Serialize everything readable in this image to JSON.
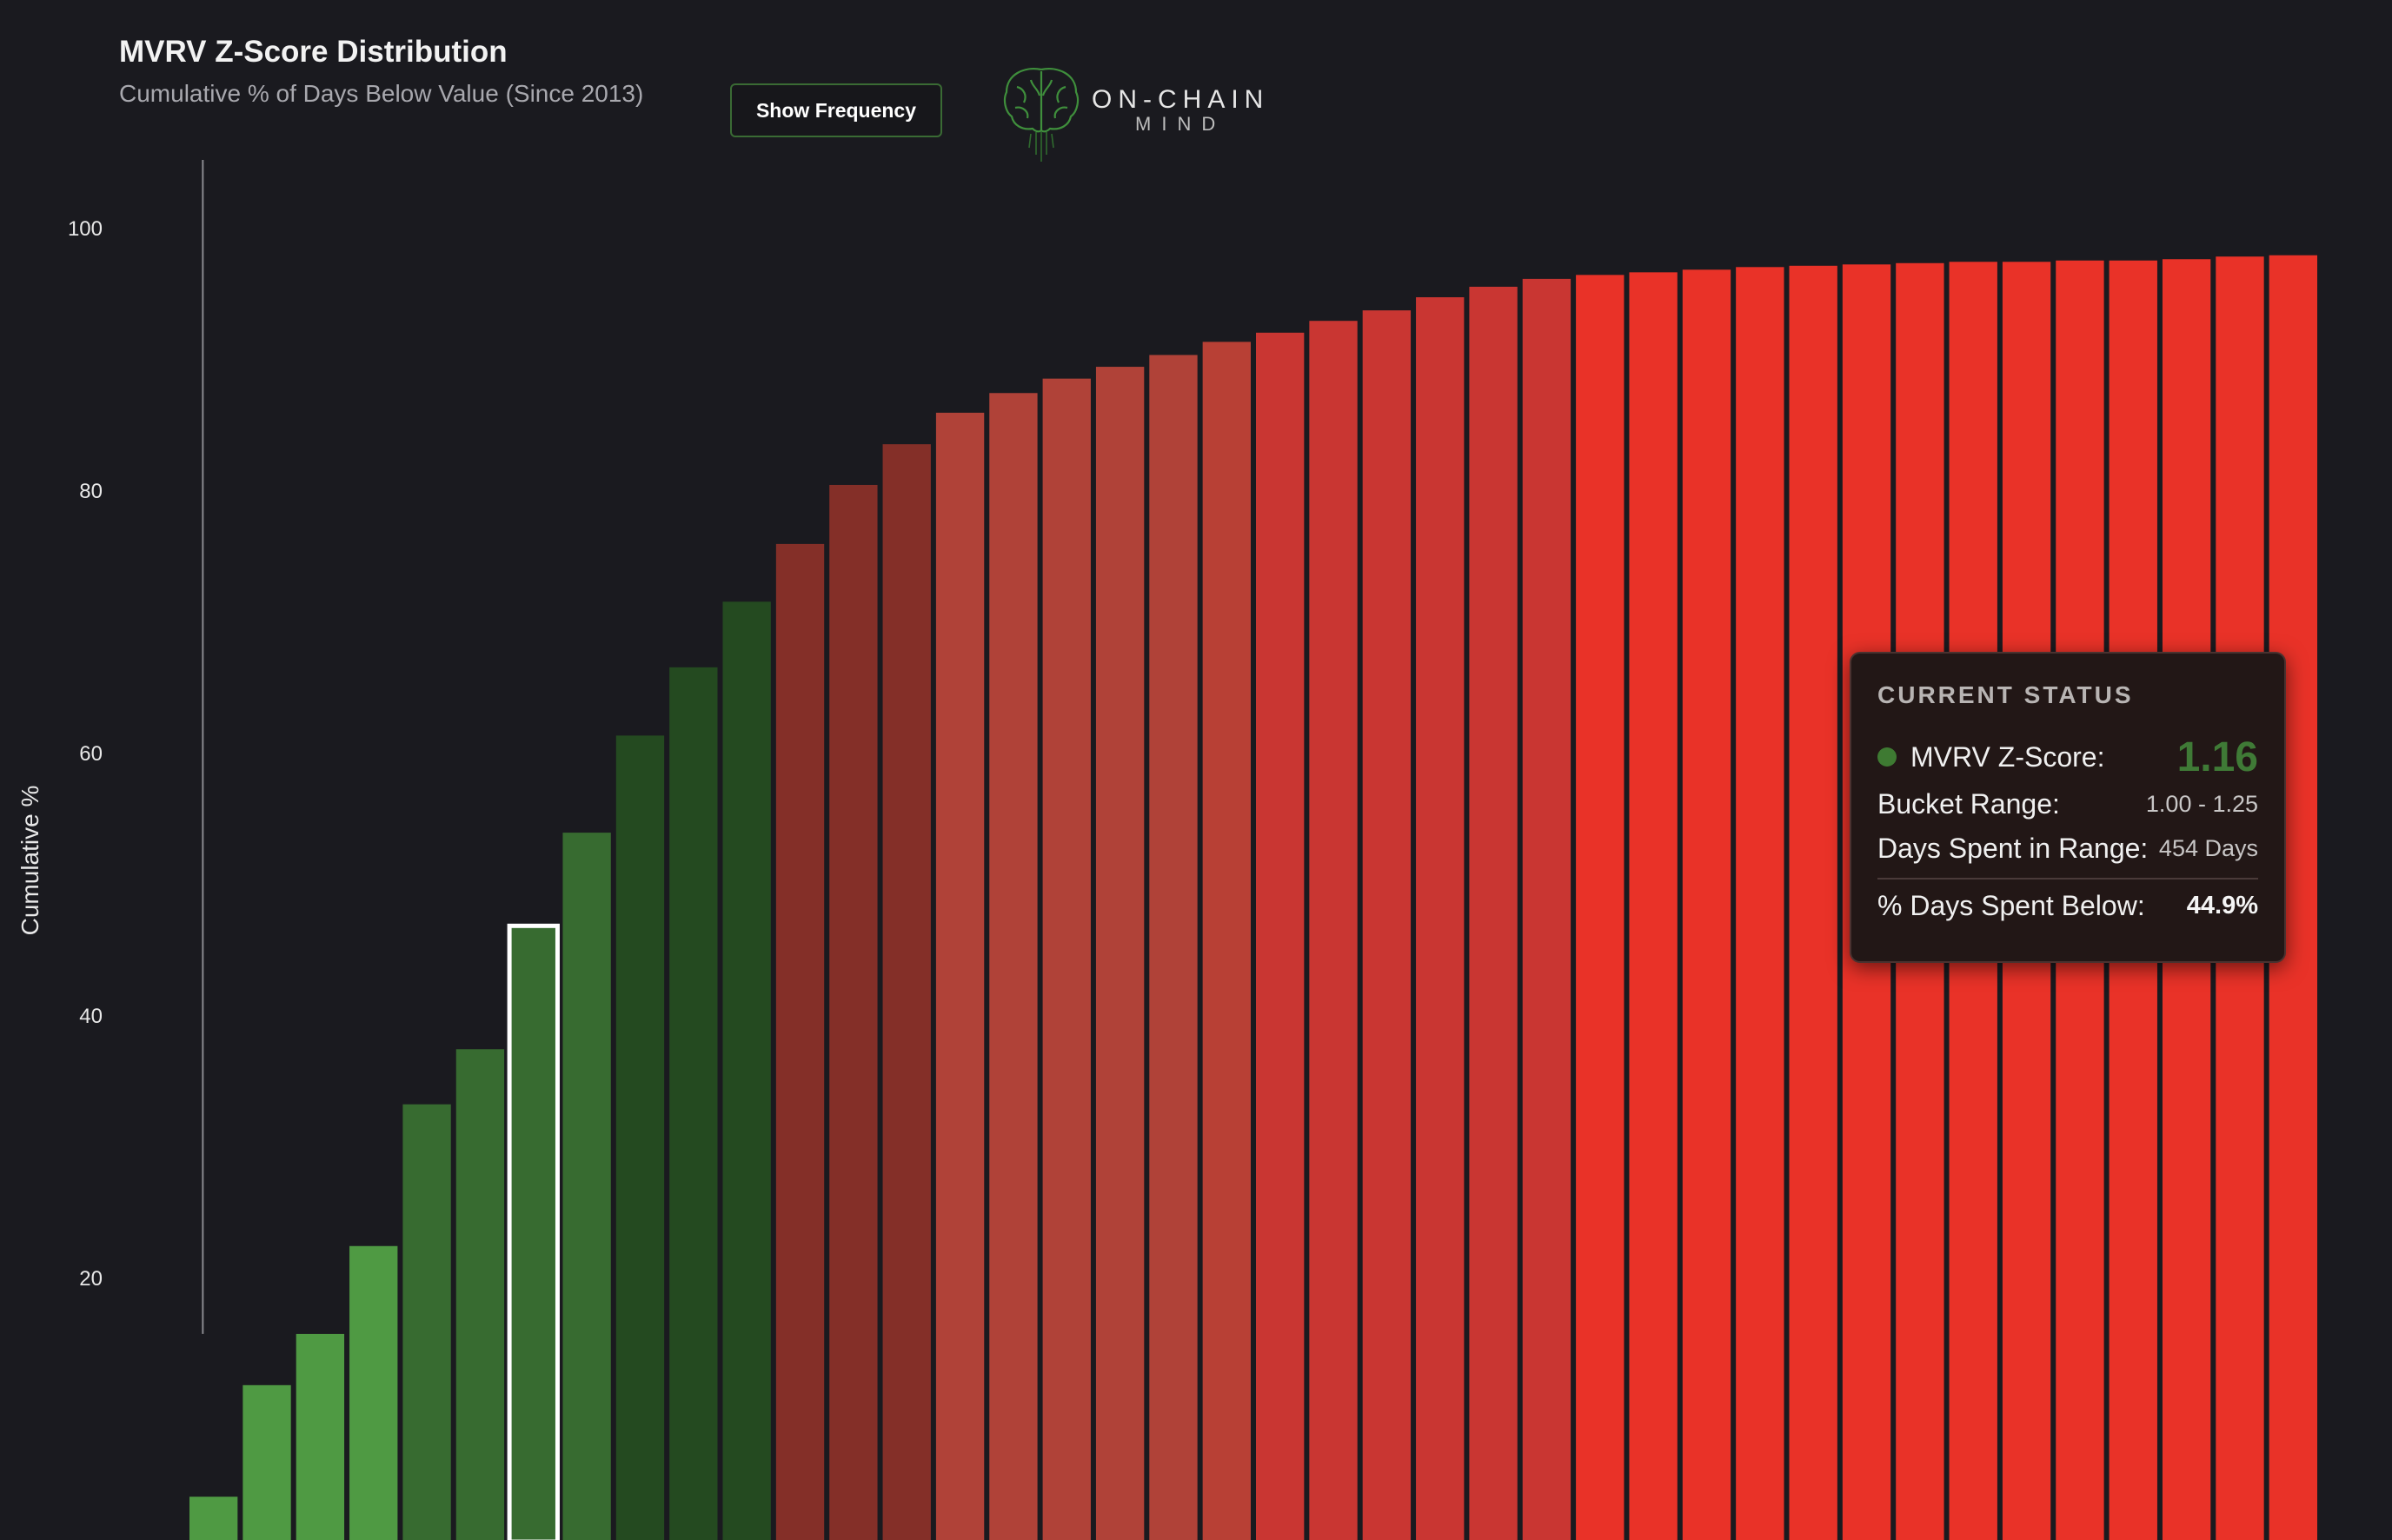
{
  "header": {
    "title": "MVRV Z-Score Distribution",
    "subtitle": "Cumulative % of Days Below Value (Since 2013)",
    "toggle_button_label": "Show Frequency"
  },
  "logo": {
    "icon": "brain-icon",
    "line1": "ON-CHAIN",
    "line2": "MIND"
  },
  "tooltip": {
    "heading": "CURRENT STATUS",
    "zscore_label": "MVRV Z-Score:",
    "zscore_value": "1.16",
    "bucket_label": "Bucket Range:",
    "bucket_value": "1.00 - 1.25",
    "days_label": "Days Spent in Range:",
    "days_value": "454 Days",
    "below_label": "% Days Spent Below:",
    "below_value": "44.9%",
    "accent_color": "#3f7a36"
  },
  "chart_data": {
    "type": "bar",
    "title": "MVRV Z-Score Distribution",
    "subtitle": "Cumulative % of Days Below Value (Since 2013)",
    "ylabel": "Cumulative %",
    "xlabel": "",
    "ylim": [
      0,
      100
    ],
    "yticks": [
      20,
      40,
      60,
      80,
      100
    ],
    "grid": false,
    "values": [
      3.3,
      11.8,
      15.7,
      22.4,
      33.2,
      37.4,
      46.8,
      53.9,
      61.3,
      66.5,
      71.5,
      75.9,
      80.4,
      83.5,
      85.9,
      87.4,
      88.5,
      89.4,
      90.3,
      91.3,
      92.0,
      92.9,
      93.7,
      94.7,
      95.5,
      96.1,
      96.4,
      96.6,
      96.8,
      97.0,
      97.1,
      97.2,
      97.3,
      97.4,
      97.4,
      97.5,
      97.5,
      97.6,
      97.8,
      97.9
    ],
    "highlight_index": 6,
    "marker_line_x": 0.25,
    "colors": [
      "#4f9a43",
      "#4f9a43",
      "#4f9a43",
      "#4f9a43",
      "#376b30",
      "#376b30",
      "#376b30",
      "#376b30",
      "#244a20",
      "#244a20",
      "#244a20",
      "#842f28",
      "#842f28",
      "#842f28",
      "#b04238",
      "#b04238",
      "#b04238",
      "#b04238",
      "#b04238",
      "#b84035",
      "#c93632",
      "#c93632",
      "#c93632",
      "#c93632",
      "#c93632",
      "#c93632",
      "#e93228",
      "#e93228",
      "#e93228",
      "#e93228",
      "#e93228",
      "#e93228",
      "#e93228",
      "#e93228",
      "#e93228",
      "#e93228",
      "#e93228",
      "#e93228",
      "#e93228",
      "#e93228"
    ]
  }
}
